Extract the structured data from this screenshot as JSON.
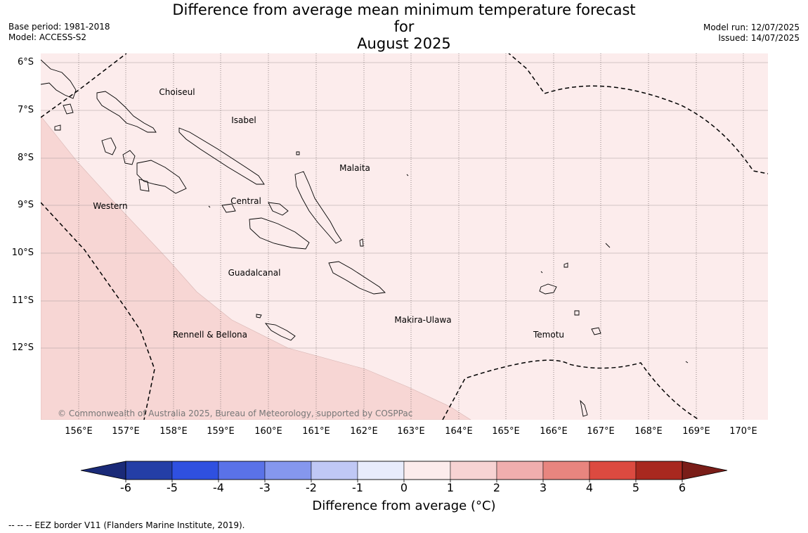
{
  "title_line1": "Difference from average mean minimum temperature forecast for",
  "title_line2": "August 2025",
  "meta": {
    "base_period": "Base period: 1981-2018",
    "model": "Model: ACCESS-S2",
    "model_run": "Model run: 12/07/2025",
    "issued": "Issued: 14/07/2025"
  },
  "lat_labels": [
    "6°S",
    "7°S",
    "8°S",
    "9°S",
    "10°S",
    "11°S",
    "12°S"
  ],
  "lon_labels": [
    "156°E",
    "157°E",
    "158°E",
    "159°E",
    "160°E",
    "161°E",
    "162°E",
    "163°E",
    "164°E",
    "165°E",
    "166°E",
    "167°E",
    "168°E",
    "169°E",
    "170°E"
  ],
  "regions": [
    "Choiseul",
    "Isabel",
    "Malaita",
    "Western",
    "Central",
    "Guadalcanal",
    "Makira-Ulawa",
    "Temotu",
    "Rennell & Bellona"
  ],
  "copyright": "© Commonwealth of Australia 2025, Bureau of Meteorology, supported by COSPPac",
  "colorbar": {
    "ticks": [
      "-6",
      "-5",
      "-4",
      "-3",
      "-2",
      "-1",
      "0",
      "1",
      "2",
      "3",
      "4",
      "5",
      "6"
    ],
    "colors": [
      "#243ea6",
      "#2f50e0",
      "#5a72e8",
      "#8597ee",
      "#c0c8f5",
      "#e8ecfc",
      "#fcecec",
      "#f7d3d3",
      "#f0aeae",
      "#e8857f",
      "#dc4a40",
      "#a8281f"
    ],
    "under_color": "#1a2a78",
    "over_color": "#7a1d18",
    "label": "Difference from average (°C)"
  },
  "map_colors": {
    "category_0_1": "#fcecec",
    "category_1_2": "#f7d6d4"
  },
  "footer": "--  --  -- EEZ border V11 (Flanders Marine Institute, 2019)."
}
